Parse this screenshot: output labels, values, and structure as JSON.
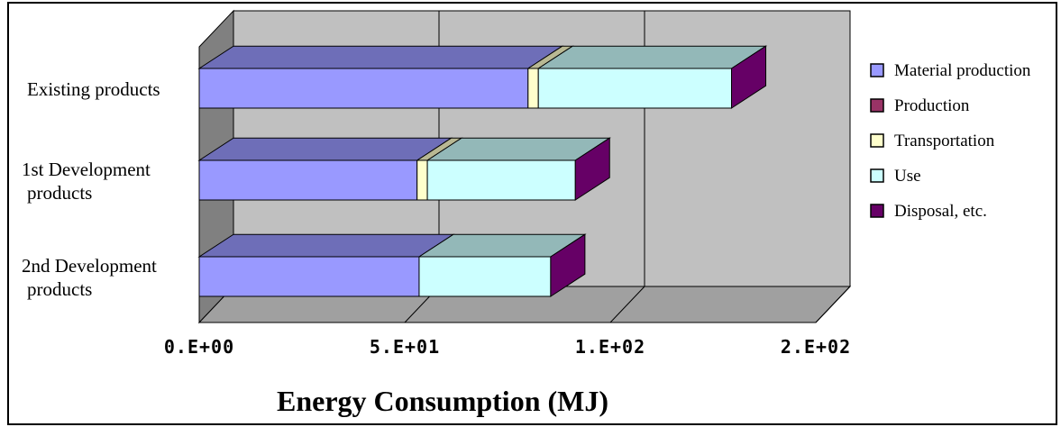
{
  "chart_data": {
    "type": "bar",
    "orientation": "horizontal",
    "stacked": true,
    "three_d": true,
    "xlabel": "Energy Consumption (MJ)",
    "xlim": [
      0,
      150
    ],
    "x_ticks": [
      0,
      50,
      100,
      150
    ],
    "x_tick_labels": [
      "0.E+00",
      "5.E+01",
      "1.E+02",
      "2.E+02"
    ],
    "categories": [
      "Existing products",
      "1st Development products",
      "2nd Development products"
    ],
    "category_lines": [
      [
        "Existing products"
      ],
      [
        "1st Development",
        "products"
      ],
      [
        "2nd Development",
        "products"
      ]
    ],
    "series": [
      {
        "name": "Material production",
        "color": "#9999ff",
        "values": [
          80,
          53,
          53.5
        ]
      },
      {
        "name": "Production",
        "color": "#993366",
        "values": [
          0,
          0,
          0
        ]
      },
      {
        "name": "Transportation",
        "color": "#ffffcc",
        "values": [
          2.5,
          2.5,
          0
        ]
      },
      {
        "name": "Use",
        "color": "#ccffff",
        "values": [
          47,
          36,
          32
        ]
      },
      {
        "name": "Disposal, etc.",
        "color": "#660066",
        "values": [
          0,
          0,
          0
        ]
      }
    ],
    "grid": true,
    "legend_position": "right",
    "plot_background": "#c0c0c0"
  }
}
